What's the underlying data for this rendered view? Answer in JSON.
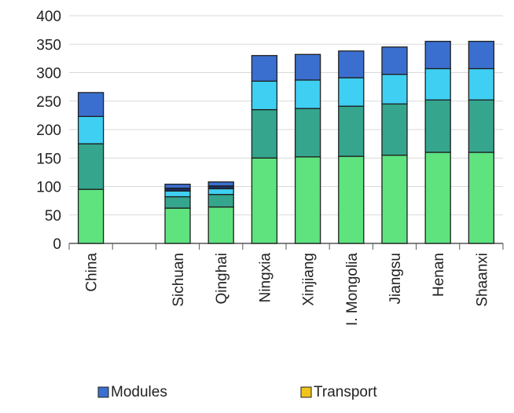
{
  "chart_data": {
    "type": "bar",
    "stacked": true,
    "categories": [
      "China",
      "",
      "Sichuan",
      "Qinghai",
      "Ningxia",
      "Xinjiang",
      "I. Mongolia",
      "Jiangsu",
      "Henan",
      "Shaanxi"
    ],
    "series": [
      {
        "color": "#5ee37f",
        "values": [
          95,
          null,
          62,
          64,
          150,
          152,
          153,
          155,
          160,
          160
        ]
      },
      {
        "color": "#35a58e",
        "values": [
          80,
          null,
          20,
          22,
          85,
          85,
          88,
          90,
          92,
          92
        ]
      },
      {
        "color": "#3fcff2",
        "values": [
          48,
          null,
          10,
          10,
          50,
          50,
          50,
          52,
          55,
          55
        ]
      },
      {
        "color": "#1b2d63",
        "values": [
          0,
          null,
          5,
          5,
          0,
          0,
          0,
          0,
          0,
          0
        ]
      },
      {
        "color": "#3b6fcf",
        "values": [
          42,
          null,
          7,
          7,
          45,
          45,
          47,
          48,
          48,
          48
        ]
      }
    ],
    "yticks": [
      0,
      50,
      100,
      150,
      200,
      250,
      300,
      350,
      400
    ],
    "ylim": [
      0,
      400
    ],
    "grid": true,
    "legend": [
      {
        "name": "Modules",
        "color": "#3b6fcf"
      },
      {
        "name": "Transport",
        "color": "#f0c419"
      }
    ],
    "legend_position": "bottom"
  }
}
